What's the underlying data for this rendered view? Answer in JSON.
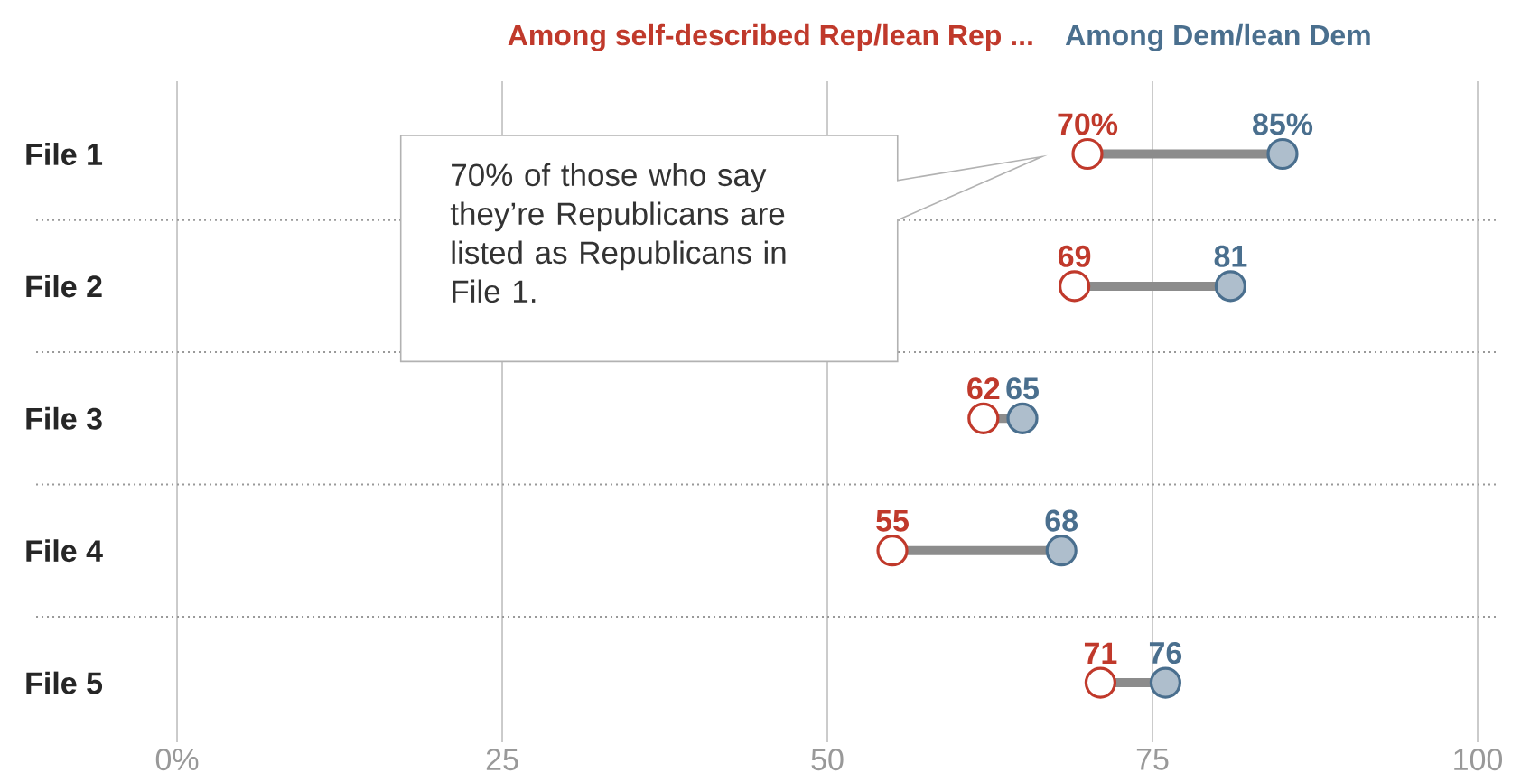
{
  "chart_data": {
    "type": "scatter",
    "orientation": "horizontal",
    "categories": [
      "File 1",
      "File 2",
      "File 3",
      "File 4",
      "File 5"
    ],
    "series": [
      {
        "name": "Among self-described Rep/lean Rep ...",
        "color": "#c0392b",
        "values": [
          70,
          69,
          62,
          55,
          71
        ],
        "value_labels": [
          "70%",
          "69",
          "62",
          "55",
          "71"
        ]
      },
      {
        "name": "Among Dem/lean Dem",
        "color": "#4a6f8e",
        "values": [
          85,
          81,
          65,
          68,
          76
        ],
        "value_labels": [
          "85%",
          "81",
          "65",
          "68",
          "76"
        ]
      }
    ],
    "xlim": [
      0,
      100
    ],
    "xticks": [
      {
        "value": 0,
        "label": "0%"
      },
      25,
      50,
      75,
      100
    ],
    "grid": "x",
    "legend": "top",
    "annotations": [
      "70% of those who say they’re Republicans are listed as Republicans in File 1."
    ]
  }
}
